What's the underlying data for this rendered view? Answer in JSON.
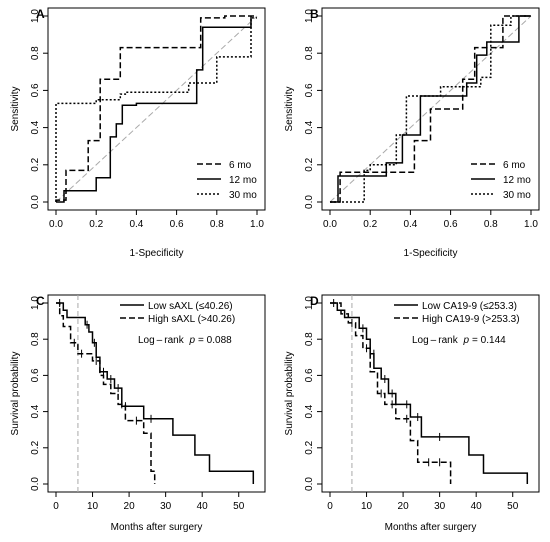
{
  "chart_data": [
    {
      "type": "line",
      "panel_label": "A",
      "xlabel": "1-Specificity",
      "ylabel": "Sensitivity",
      "xlim": [
        0,
        1
      ],
      "ylim": [
        0,
        1
      ],
      "xticks": [
        "0.0",
        "0.2",
        "0.4",
        "0.6",
        "0.8",
        "1.0"
      ],
      "yticks": [
        "0.0",
        "0.2",
        "0.4",
        "0.6",
        "0.8",
        "1.0"
      ],
      "reference_line": "diagonal (gray dashed)",
      "legend_position": "bottom-right",
      "series": [
        {
          "name": "6 mo",
          "style": "dashed",
          "x": [
            0,
            0,
            0.05,
            0.05,
            0.16,
            0.16,
            0.22,
            0.22,
            0.32,
            0.32,
            0.38,
            0.38,
            0.72,
            0.72,
            0.84,
            0.84,
            1.0
          ],
          "y": [
            0,
            0.01,
            0.01,
            0.17,
            0.17,
            0.33,
            0.33,
            0.66,
            0.66,
            0.83,
            0.83,
            0.83,
            0.83,
            0.99,
            0.99,
            1.0,
            1.0
          ]
        },
        {
          "name": "12 mo",
          "style": "solid",
          "x": [
            0,
            0.04,
            0.04,
            0.2,
            0.2,
            0.27,
            0.27,
            0.3,
            0.3,
            0.33,
            0.33,
            0.4,
            0.4,
            0.7,
            0.7,
            0.73,
            0.73,
            0.8,
            0.8,
            0.97,
            0.97
          ],
          "y": [
            0,
            0,
            0.06,
            0.06,
            0.13,
            0.13,
            0.35,
            0.35,
            0.42,
            0.42,
            0.52,
            0.52,
            0.53,
            0.53,
            0.71,
            0.71,
            0.94,
            0.94,
            0.94,
            0.94,
            1.0
          ]
        },
        {
          "name": "30 mo",
          "style": "dotted",
          "x": [
            0,
            0,
            0.2,
            0.2,
            0.32,
            0.32,
            0.35,
            0.35,
            0.66,
            0.66,
            0.8,
            0.8,
            0.97,
            0.97,
            1.0
          ],
          "y": [
            0,
            0.53,
            0.53,
            0.55,
            0.55,
            0.58,
            0.58,
            0.59,
            0.59,
            0.64,
            0.64,
            0.78,
            0.78,
            0.99,
            0.99
          ]
        }
      ]
    },
    {
      "type": "line",
      "panel_label": "B",
      "xlabel": "1-Specificity",
      "ylabel": "Sensitivity",
      "xlim": [
        0,
        1
      ],
      "ylim": [
        0,
        1
      ],
      "xticks": [
        "0.0",
        "0.2",
        "0.4",
        "0.6",
        "0.8",
        "1.0"
      ],
      "yticks": [
        "0.0",
        "0.2",
        "0.4",
        "0.6",
        "0.8",
        "1.0"
      ],
      "reference_line": "diagonal (gray dashed)",
      "legend_position": "bottom-right",
      "series": [
        {
          "name": "6 mo",
          "style": "dashed",
          "x": [
            0,
            0.05,
            0.05,
            0.33,
            0.33,
            0.42,
            0.42,
            0.5,
            0.5,
            0.66,
            0.66,
            0.72,
            0.72,
            0.8,
            0.8,
            0.86,
            0.86,
            0.95,
            0.95,
            1.0
          ],
          "y": [
            0,
            0,
            0.16,
            0.16,
            0.16,
            0.16,
            0.33,
            0.33,
            0.5,
            0.5,
            0.66,
            0.66,
            0.83,
            0.83,
            0.83,
            0.83,
            1.0,
            1.0,
            1.0,
            1.0
          ]
        },
        {
          "name": "12 mo",
          "style": "solid",
          "x": [
            0,
            0.04,
            0.04,
            0.28,
            0.28,
            0.36,
            0.36,
            0.45,
            0.45,
            0.68,
            0.68,
            0.73,
            0.73,
            0.78,
            0.78,
            0.86,
            0.86,
            0.94,
            0.94,
            1.0
          ],
          "y": [
            0,
            0,
            0.14,
            0.14,
            0.21,
            0.21,
            0.36,
            0.36,
            0.57,
            0.57,
            0.64,
            0.64,
            0.79,
            0.79,
            0.86,
            0.86,
            0.86,
            0.86,
            1.0,
            1.0
          ]
        },
        {
          "name": "30 mo",
          "style": "dotted",
          "x": [
            0,
            0.17,
            0.17,
            0.2,
            0.2,
            0.33,
            0.33,
            0.38,
            0.38,
            0.55,
            0.55,
            0.75,
            0.75,
            0.8,
            0.8,
            0.9,
            0.9,
            1.0
          ],
          "y": [
            0,
            0,
            0.17,
            0.17,
            0.2,
            0.2,
            0.36,
            0.36,
            0.57,
            0.57,
            0.62,
            0.62,
            0.67,
            0.67,
            0.95,
            0.95,
            1.0,
            1.0
          ]
        }
      ]
    },
    {
      "type": "line",
      "panel_label": "C",
      "xlabel": "Months after surgery",
      "ylabel": "Survival probability",
      "xlim": [
        0,
        55
      ],
      "ylim": [
        0,
        1
      ],
      "xticks": [
        "0",
        "10",
        "20",
        "30",
        "40",
        "50"
      ],
      "yticks": [
        "0.0",
        "0.2",
        "0.4",
        "0.6",
        "0.8",
        "1.0"
      ],
      "vline_x": 6,
      "legend_position": "top-right",
      "annotation_prefix": "Log – rank",
      "annotation_p": "p",
      "annotation_value": "= 0.088",
      "series": [
        {
          "name": "Low sAXL (≤40.26)",
          "style": "solid",
          "x": [
            0,
            2,
            2,
            3,
            3,
            8,
            8,
            9,
            9,
            10,
            10,
            11,
            11,
            12,
            12,
            14,
            14,
            16,
            16,
            18,
            18,
            24,
            24,
            32,
            32,
            38,
            38,
            42,
            42,
            54,
            54
          ],
          "y": [
            1,
            1,
            0.96,
            0.96,
            0.92,
            0.92,
            0.88,
            0.88,
            0.84,
            0.84,
            0.78,
            0.78,
            0.7,
            0.7,
            0.62,
            0.62,
            0.58,
            0.58,
            0.53,
            0.53,
            0.43,
            0.43,
            0.36,
            0.36,
            0.27,
            0.27,
            0.16,
            0.16,
            0.07,
            0.07,
            0.0
          ],
          "censors": [
            [
              1,
              1
            ],
            [
              8.5,
              0.88
            ],
            [
              10.5,
              0.78
            ],
            [
              13,
              0.62
            ],
            [
              15,
              0.58
            ],
            [
              17,
              0.53
            ],
            [
              19,
              0.43
            ],
            [
              26,
              0.36
            ]
          ]
        },
        {
          "name": "High sAXL (>40.26)",
          "style": "dashed",
          "x": [
            0,
            1,
            1,
            2,
            2,
            4,
            4,
            6,
            6,
            10,
            10,
            12,
            12,
            13,
            13,
            15,
            15,
            17,
            17,
            19,
            19,
            24,
            24,
            26,
            26,
            27,
            27
          ],
          "y": [
            1,
            1,
            0.93,
            0.93,
            0.87,
            0.87,
            0.78,
            0.78,
            0.72,
            0.72,
            0.68,
            0.68,
            0.6,
            0.6,
            0.55,
            0.55,
            0.5,
            0.5,
            0.44,
            0.44,
            0.35,
            0.35,
            0.28,
            0.28,
            0.07,
            0.07,
            0.0
          ],
          "censors": [
            [
              5,
              0.78
            ],
            [
              7,
              0.72
            ],
            [
              11,
              0.68
            ],
            [
              14,
              0.6
            ],
            [
              18,
              0.44
            ],
            [
              22,
              0.35
            ]
          ]
        }
      ]
    },
    {
      "type": "line",
      "panel_label": "D",
      "xlabel": "Months after surgery",
      "ylabel": "Survival probability",
      "xlim": [
        0,
        55
      ],
      "ylim": [
        0,
        1
      ],
      "xticks": [
        "0",
        "10",
        "20",
        "30",
        "40",
        "50"
      ],
      "yticks": [
        "0.0",
        "0.2",
        "0.4",
        "0.6",
        "0.8",
        "1.0"
      ],
      "vline_x": 6,
      "legend_position": "top-right",
      "annotation_prefix": "Log – rank",
      "annotation_p": "p",
      "annotation_value": "= 0.144",
      "series": [
        {
          "name": "Low CA19-9 (≤253.3)",
          "style": "solid",
          "x": [
            0,
            2,
            2,
            4,
            4,
            8,
            8,
            10,
            10,
            11,
            11,
            12,
            12,
            14,
            14,
            16,
            16,
            18,
            18,
            22,
            22,
            25,
            25,
            32,
            32,
            38,
            38,
            42,
            42,
            54,
            54
          ],
          "y": [
            1,
            1,
            0.96,
            0.96,
            0.92,
            0.92,
            0.86,
            0.86,
            0.8,
            0.8,
            0.72,
            0.72,
            0.64,
            0.64,
            0.58,
            0.58,
            0.5,
            0.5,
            0.44,
            0.44,
            0.37,
            0.37,
            0.26,
            0.26,
            0.26,
            0.26,
            0.16,
            0.16,
            0.06,
            0.06,
            0.0
          ],
          "censors": [
            [
              1,
              1
            ],
            [
              9,
              0.86
            ],
            [
              12,
              0.72
            ],
            [
              15,
              0.58
            ],
            [
              17,
              0.5
            ],
            [
              21,
              0.44
            ],
            [
              24,
              0.37
            ],
            [
              30,
              0.26
            ]
          ]
        },
        {
          "name": "High CA19-9 (>253.3)",
          "style": "dashed",
          "x": [
            0,
            3,
            3,
            5,
            5,
            7,
            7,
            9,
            9,
            11,
            11,
            13,
            13,
            15,
            15,
            18,
            18,
            22,
            22,
            24,
            24,
            26,
            26,
            33,
            33
          ],
          "y": [
            1,
            1,
            0.94,
            0.94,
            0.89,
            0.89,
            0.82,
            0.82,
            0.75,
            0.75,
            0.62,
            0.62,
            0.5,
            0.5,
            0.44,
            0.44,
            0.36,
            0.36,
            0.24,
            0.24,
            0.12,
            0.12,
            0.12,
            0.12,
            0.0
          ],
          "censors": [
            [
              6,
              0.89
            ],
            [
              10,
              0.75
            ],
            [
              14,
              0.5
            ],
            [
              17,
              0.44
            ],
            [
              21,
              0.36
            ],
            [
              27,
              0.12
            ],
            [
              30,
              0.12
            ]
          ]
        }
      ]
    }
  ]
}
